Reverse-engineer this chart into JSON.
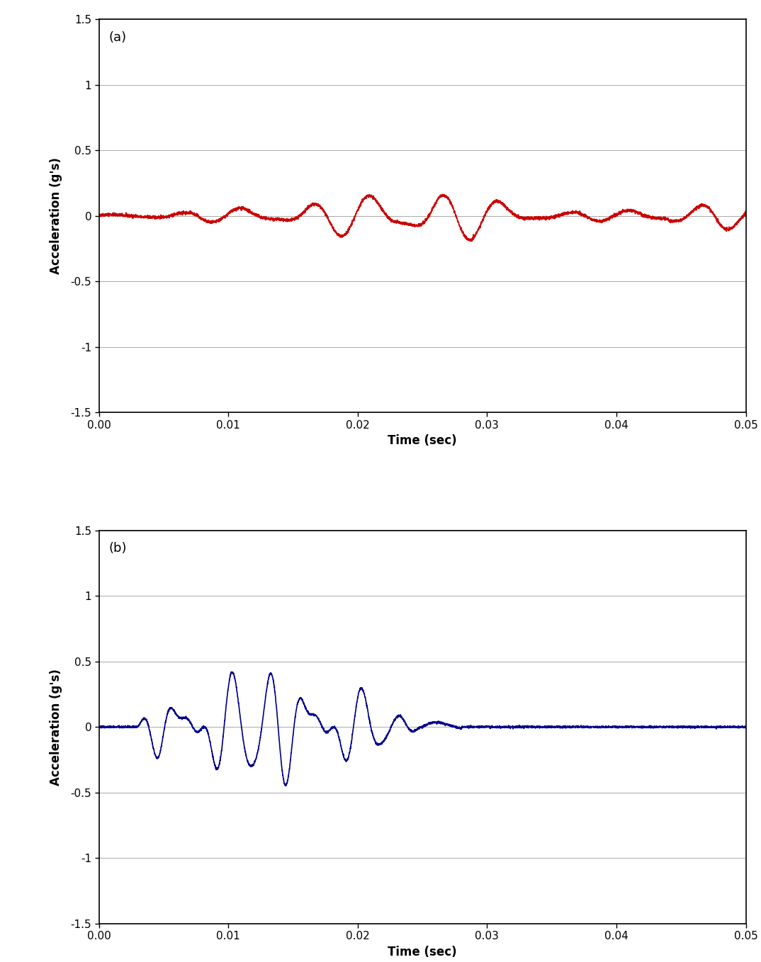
{
  "fig_width": 10.74,
  "fig_height": 13.58,
  "dpi": 100,
  "background_color": "#ffffff",
  "outer_bg": "#e8e8e8",
  "panel_a": {
    "label": "(a)",
    "color": "#cc0000",
    "linewidth": 1.2,
    "xlabel": "Time (sec)",
    "ylabel": "Acceleration (g's)",
    "xlim": [
      0.0,
      0.05
    ],
    "ylim": [
      -1.5,
      1.5
    ],
    "xticks": [
      0.0,
      0.01,
      0.02,
      0.03,
      0.04,
      0.05
    ],
    "yticks": [
      -1.5,
      -1.0,
      -0.5,
      0.0,
      0.5,
      1.0,
      1.5
    ]
  },
  "panel_b": {
    "label": "(b)",
    "color": "#00008b",
    "linewidth": 1.2,
    "xlabel": "Time (sec)",
    "ylabel": "Acceleration (g's)",
    "xlim": [
      0.0,
      0.05
    ],
    "ylim": [
      -1.5,
      1.5
    ],
    "xticks": [
      0.0,
      0.01,
      0.02,
      0.03,
      0.04,
      0.05
    ],
    "yticks": [
      -1.5,
      -1.0,
      -0.5,
      0.0,
      0.5,
      1.0,
      1.5
    ]
  }
}
